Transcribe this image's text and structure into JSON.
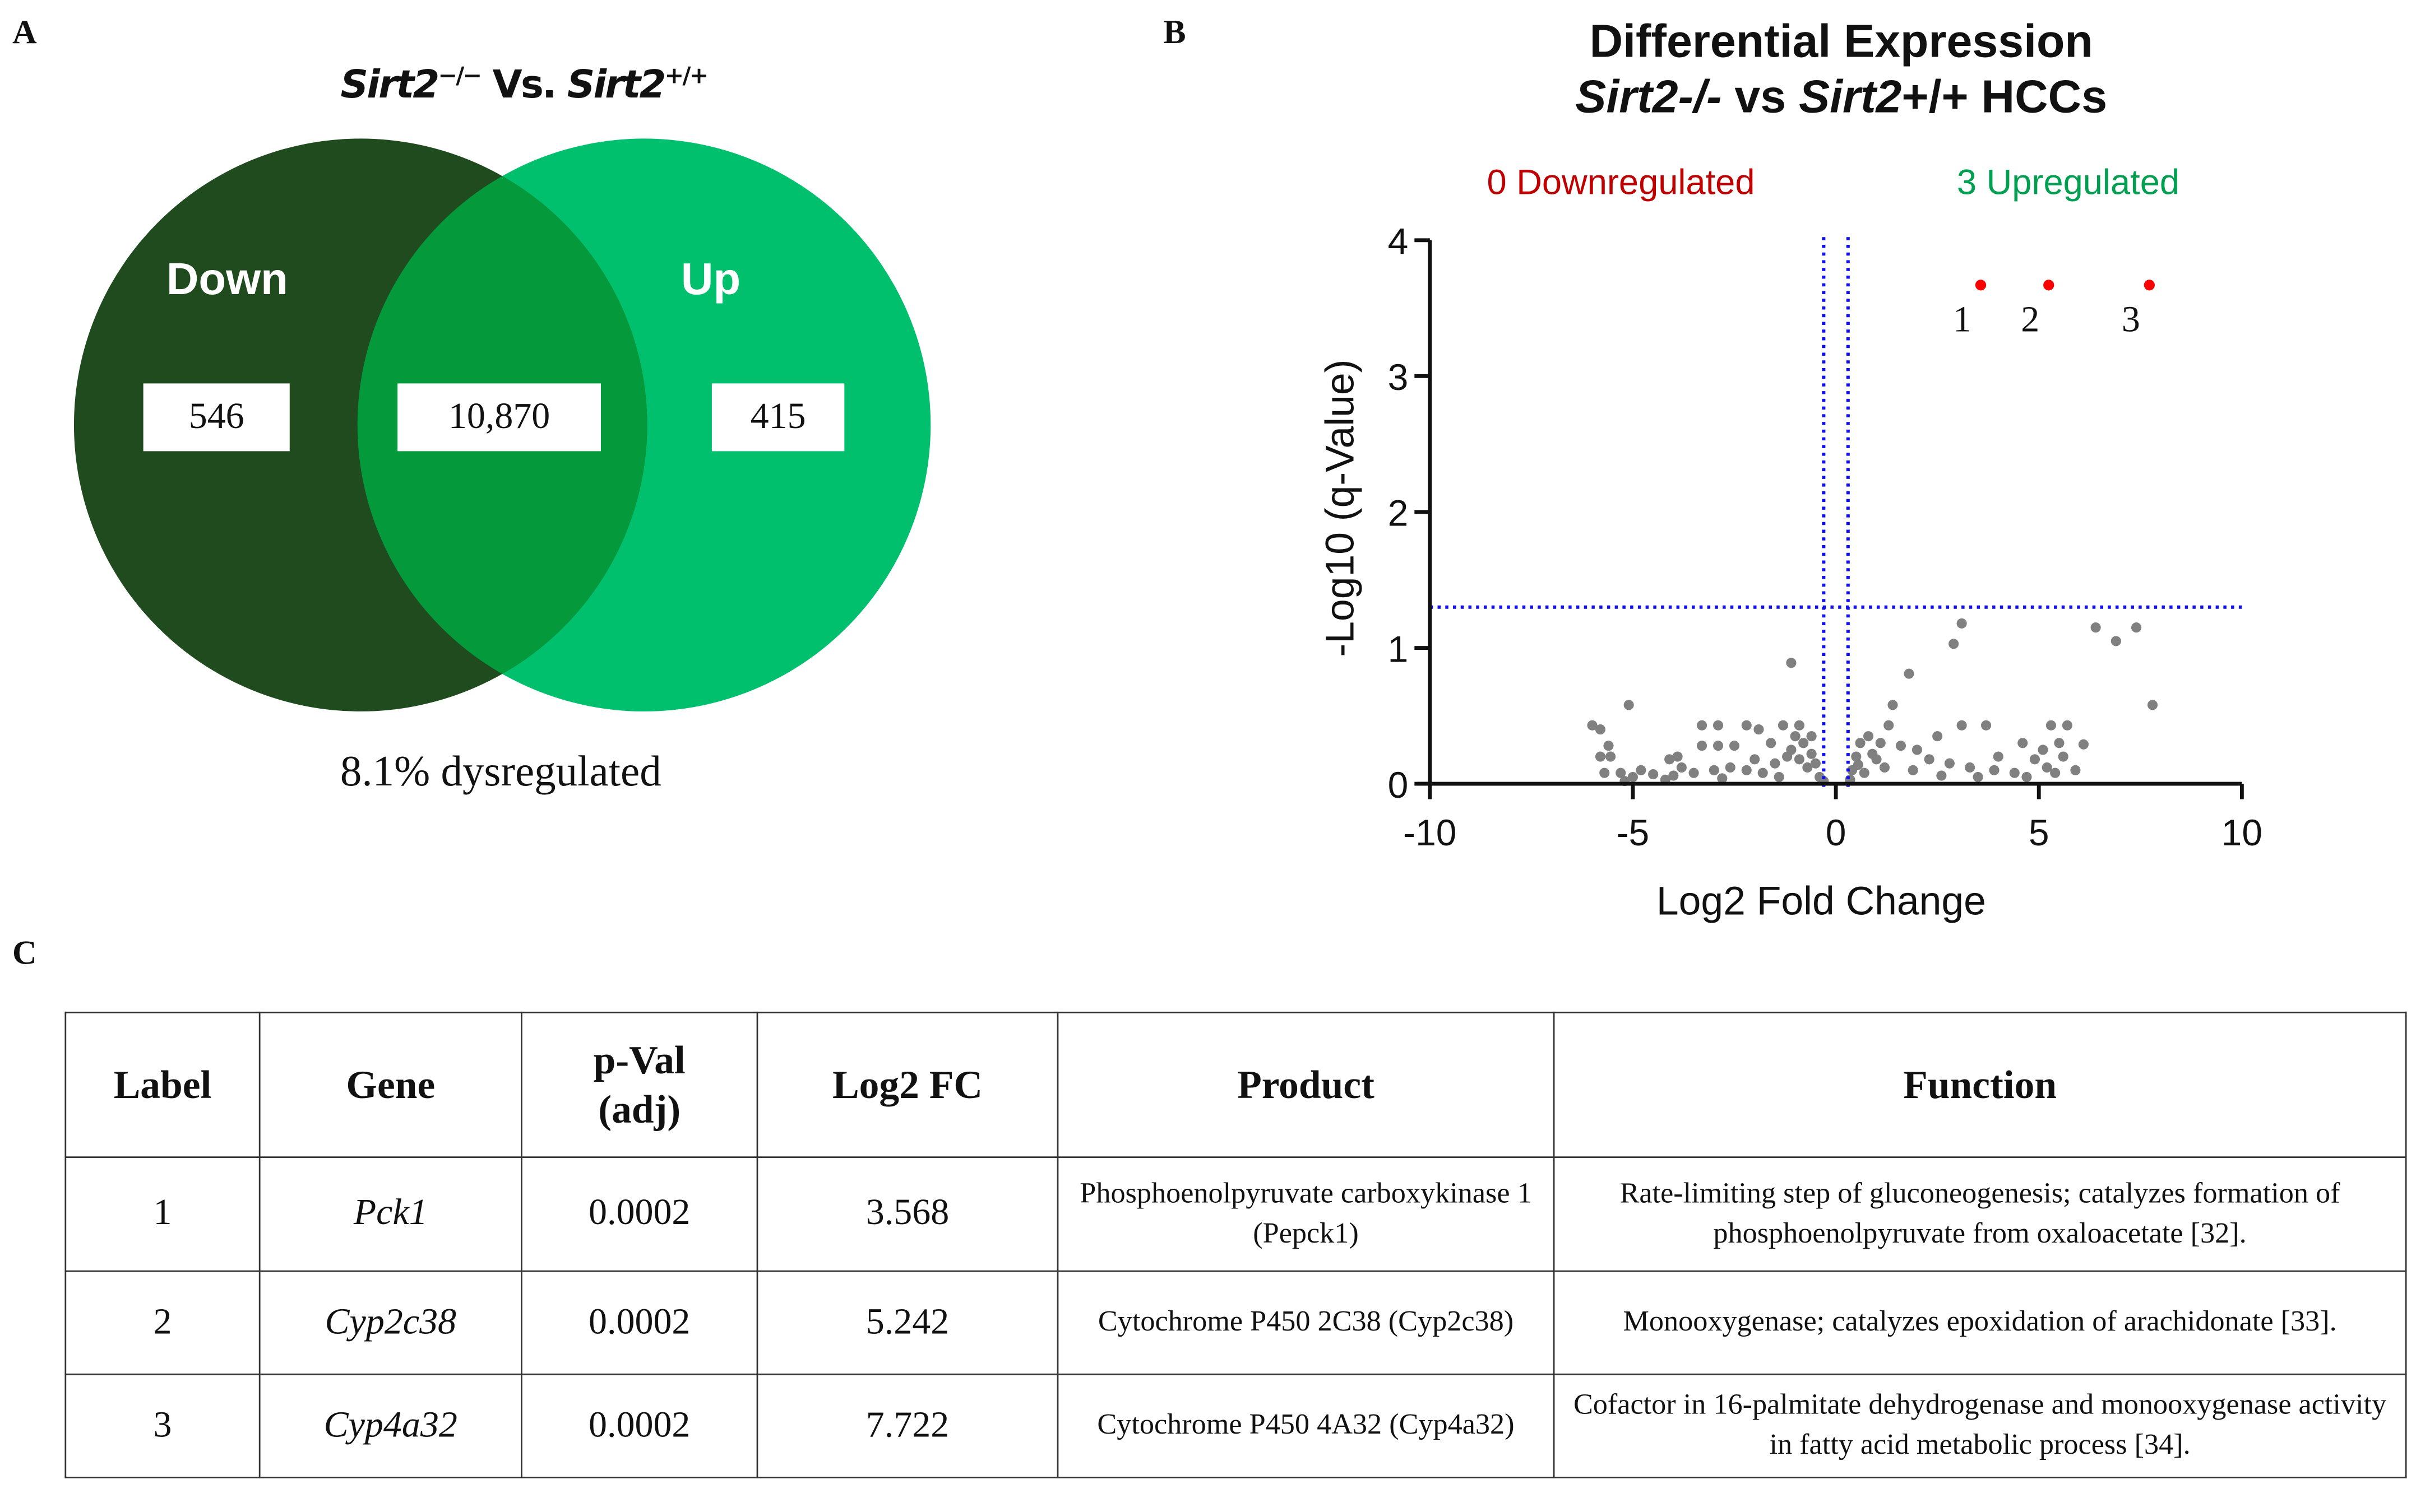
{
  "panel_labels": {
    "a": "A",
    "b": "B",
    "c": "C"
  },
  "venn": {
    "title_gene1": "Sirt2",
    "title_sup1": "−/−",
    "title_vs": "Vs.",
    "title_gene2": "Sirt2",
    "title_sup2": "+/+",
    "left_label": "Down",
    "right_label": "Up",
    "left_count": "546",
    "overlap_count": "10,870",
    "right_count": "415",
    "caption": "8.1% dysregulated",
    "colors": {
      "left": "#1f4b1f",
      "right": "#00c06e",
      "overlap": "#049a3c"
    }
  },
  "chart_data": {
    "type": "scatter",
    "title_line1": "Differential Expression",
    "title_line2_gene1": "Sirt2-/-",
    "title_line2_vs": " vs ",
    "title_line2_gene2": "Sirt2",
    "title_line2_rest": "+/+ HCCs",
    "down_annotation": "0 Downregulated",
    "up_annotation": "3 Upregulated",
    "xlabel": "Log2 Fold Change",
    "ylabel": "-Log10 (q-Value)",
    "xlim": [
      -10,
      10
    ],
    "ylim": [
      0,
      4
    ],
    "xticks": [
      "-10",
      "-5",
      "0",
      "5",
      "10"
    ],
    "yticks": [
      "0",
      "1",
      "2",
      "3",
      "4"
    ],
    "thresholds": {
      "y": 1.3,
      "x_low": -0.3,
      "x_high": 0.3
    },
    "colors": {
      "down_text": "#c00000",
      "up_text": "#00a050",
      "threshold": "#1010ee",
      "sig": "#ff0000",
      "nonsig": "#808080"
    },
    "significant": [
      {
        "label": "1",
        "x": 3.568,
        "y": 3.67
      },
      {
        "label": "2",
        "x": 5.242,
        "y": 3.67
      },
      {
        "label": "3",
        "x": 7.722,
        "y": 3.67
      }
    ],
    "nonsignificant": [
      [
        -1.1,
        0.89
      ],
      [
        -5.1,
        0.58
      ],
      [
        -6.0,
        0.43
      ],
      [
        -5.8,
        0.4
      ],
      [
        -5.6,
        0.28
      ],
      [
        -5.8,
        0.2
      ],
      [
        -5.55,
        0.2
      ],
      [
        -5.7,
        0.08
      ],
      [
        -3.3,
        0.43
      ],
      [
        -2.9,
        0.43
      ],
      [
        -2.2,
        0.43
      ],
      [
        -1.3,
        0.43
      ],
      [
        -0.9,
        0.43
      ],
      [
        -1.9,
        0.4
      ],
      [
        -3.3,
        0.28
      ],
      [
        -2.9,
        0.28
      ],
      [
        -2.5,
        0.28
      ],
      [
        -3.9,
        0.2
      ],
      [
        -4.1,
        0.18
      ],
      [
        -1.6,
        0.3
      ],
      [
        -1.0,
        0.35
      ],
      [
        -0.8,
        0.3
      ],
      [
        -0.6,
        0.22
      ],
      [
        -0.5,
        0.15
      ],
      [
        -0.7,
        0.12
      ],
      [
        -1.2,
        0.2
      ],
      [
        -1.5,
        0.15
      ],
      [
        -2.0,
        0.18
      ],
      [
        -2.6,
        0.12
      ],
      [
        -3.0,
        0.1
      ],
      [
        -3.5,
        0.08
      ],
      [
        -4.0,
        0.06
      ],
      [
        -4.5,
        0.07
      ],
      [
        -5.0,
        0.05
      ],
      [
        -5.3,
        0.08
      ],
      [
        -4.8,
        0.1
      ],
      [
        -3.8,
        0.12
      ],
      [
        -2.2,
        0.1
      ],
      [
        -1.8,
        0.08
      ],
      [
        -0.4,
        0.05
      ],
      [
        -0.3,
        0.02
      ],
      [
        -1.4,
        0.05
      ],
      [
        -2.8,
        0.04
      ],
      [
        -4.2,
        0.03
      ],
      [
        -5.2,
        0.02
      ],
      [
        -0.9,
        0.18
      ],
      [
        -1.1,
        0.25
      ],
      [
        -0.6,
        0.35
      ],
      [
        3.1,
        1.18
      ],
      [
        2.9,
        1.03
      ],
      [
        1.8,
        0.81
      ],
      [
        1.4,
        0.58
      ],
      [
        6.4,
        1.15
      ],
      [
        6.9,
        1.05
      ],
      [
        7.4,
        1.15
      ],
      [
        7.8,
        0.58
      ],
      [
        6.1,
        0.29
      ],
      [
        5.9,
        0.1
      ],
      [
        5.7,
        0.43
      ],
      [
        5.3,
        0.43
      ],
      [
        4.6,
        0.3
      ],
      [
        3.7,
        0.43
      ],
      [
        3.1,
        0.43
      ],
      [
        2.5,
        0.35
      ],
      [
        1.3,
        0.43
      ],
      [
        1.1,
        0.3
      ],
      [
        0.6,
        0.3
      ],
      [
        0.8,
        0.35
      ],
      [
        0.5,
        0.2
      ],
      [
        0.4,
        0.1
      ],
      [
        0.35,
        0.03
      ],
      [
        0.9,
        0.22
      ],
      [
        1.6,
        0.28
      ],
      [
        2.0,
        0.25
      ],
      [
        2.3,
        0.18
      ],
      [
        2.8,
        0.15
      ],
      [
        3.3,
        0.12
      ],
      [
        3.9,
        0.1
      ],
      [
        4.4,
        0.08
      ],
      [
        4.9,
        0.18
      ],
      [
        5.1,
        0.25
      ],
      [
        5.5,
        0.3
      ],
      [
        5.2,
        0.12
      ],
      [
        4.0,
        0.2
      ],
      [
        3.5,
        0.05
      ],
      [
        2.6,
        0.06
      ],
      [
        1.9,
        0.1
      ],
      [
        1.2,
        0.12
      ],
      [
        0.7,
        0.08
      ],
      [
        4.7,
        0.05
      ],
      [
        5.4,
        0.08
      ],
      [
        5.6,
        0.2
      ],
      [
        1.0,
        0.18
      ],
      [
        0.55,
        0.14
      ]
    ]
  },
  "table": {
    "headers": [
      "Label",
      "Gene",
      "p-Val (adj)",
      "Log2 FC",
      "Product",
      "Function"
    ],
    "rows": [
      {
        "label": "1",
        "gene": "Pck1",
        "pval": "0.0002",
        "log2fc": "3.568",
        "product": "Phosphoenolpyruvate carboxykinase 1 (Pepck1)",
        "function": "Rate-limiting step of gluconeogenesis; catalyzes formation of phosphoenolpyruvate from oxaloacetate [32]."
      },
      {
        "label": "2",
        "gene": "Cyp2c38",
        "pval": "0.0002",
        "log2fc": "5.242",
        "product": "Cytochrome P450 2C38 (Cyp2c38)",
        "function": "Monooxygenase; catalyzes epoxidation of arachidonate [33]."
      },
      {
        "label": "3",
        "gene": "Cyp4a32",
        "pval": "0.0002",
        "log2fc": "7.722",
        "product": "Cytochrome P450 4A32 (Cyp4a32)",
        "function": "Cofactor in 16-palmitate dehydrogenase and monooxygenase activity in fatty acid metabolic process [34]."
      }
    ]
  }
}
